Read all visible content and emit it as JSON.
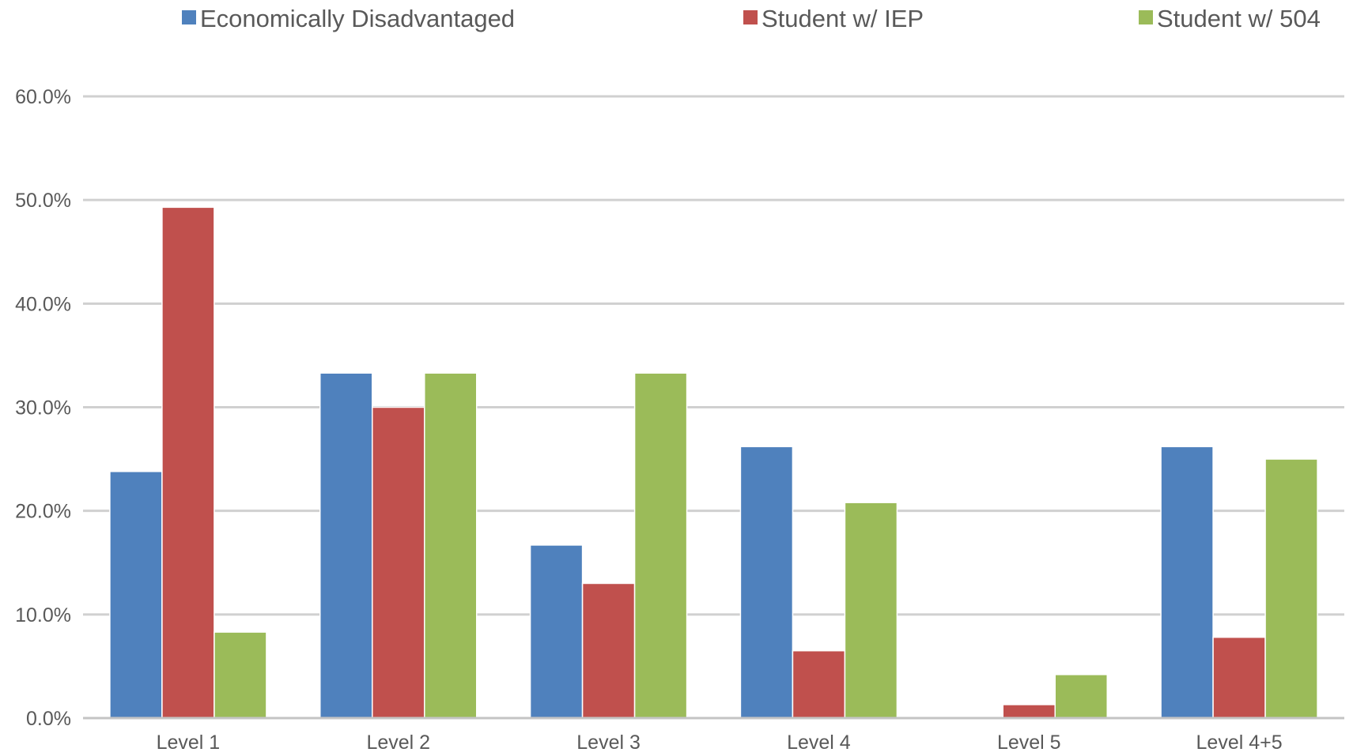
{
  "chart_data": {
    "type": "bar",
    "title": "",
    "xlabel": "",
    "ylabel": "",
    "categories": [
      "Level 1",
      "Level 2",
      "Level 3",
      "Level 4",
      "Level 5",
      "Level 4+5"
    ],
    "series": [
      {
        "name": "Economically Disadvantaged",
        "color": "#4f81bd",
        "values": [
          23.8,
          33.3,
          16.7,
          26.2,
          0.0,
          26.2
        ]
      },
      {
        "name": "Student w/ IEP",
        "color": "#c0504d",
        "values": [
          49.3,
          30.0,
          13.0,
          6.5,
          1.3,
          7.8
        ]
      },
      {
        "name": "Student w/ 504",
        "color": "#9bbb59",
        "values": [
          8.3,
          33.3,
          33.3,
          20.8,
          4.2,
          25.0
        ]
      }
    ],
    "ylim": [
      0,
      60
    ],
    "yticks": [
      "0.0%",
      "10.0%",
      "20.0%",
      "30.0%",
      "40.0%",
      "50.0%",
      "60.0%"
    ],
    "legend_position": "top",
    "grid": true
  }
}
